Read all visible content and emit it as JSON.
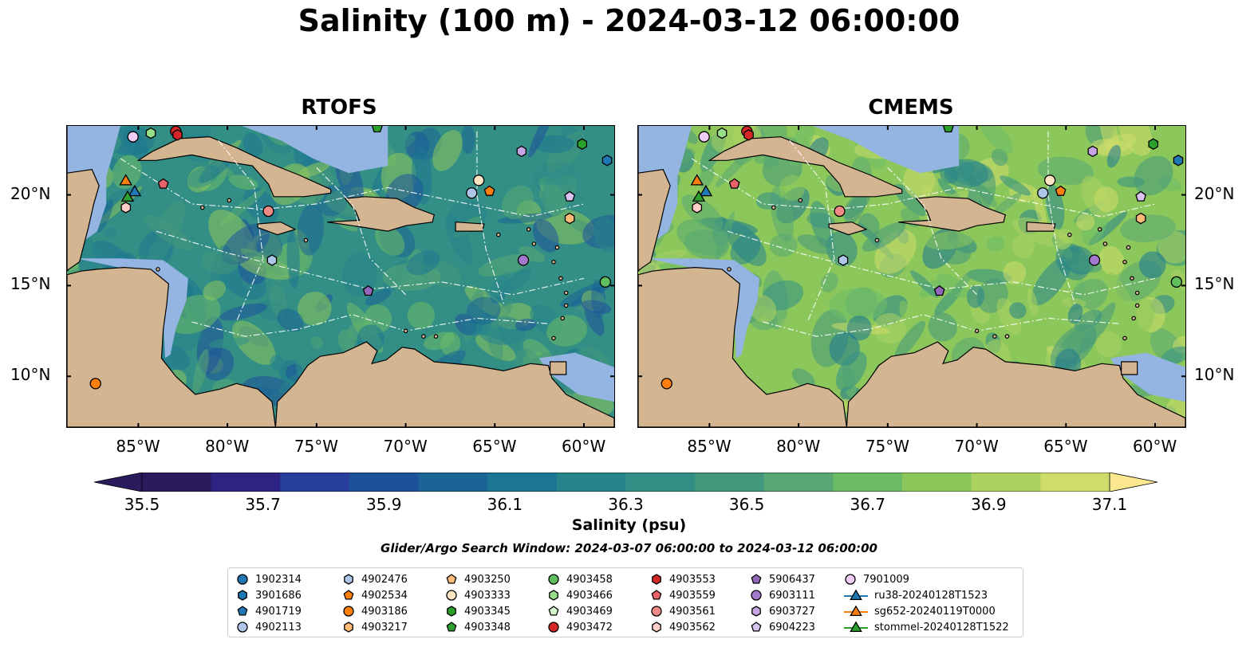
{
  "figure": {
    "title": "Salinity (100 m) - 2024-03-12 06:00:00",
    "search_window": "Glider/Argo Search Window: 2024-03-07 06:00:00 to 2024-03-12 06:00:00"
  },
  "panels": [
    {
      "title": "RTOFS"
    },
    {
      "title": "CMEMS"
    }
  ],
  "axes": {
    "lon_labels": [
      "85°W",
      "80°W",
      "75°W",
      "70°W",
      "65°W",
      "60°W"
    ],
    "lon_values": [
      -85,
      -80,
      -75,
      -70,
      -65,
      -60
    ],
    "lat_labels": [
      "20°N",
      "15°N",
      "10°N"
    ],
    "lat_values": [
      20,
      15,
      10
    ],
    "lon_range": [
      -89,
      -58.3
    ],
    "lat_range": [
      7.2,
      23.8
    ]
  },
  "colorbar": {
    "label": "Salinity (psu)",
    "tick_labels": [
      "35.5",
      "35.7",
      "35.9",
      "36.1",
      "36.3",
      "36.5",
      "36.7",
      "36.9",
      "37.1"
    ],
    "range": [
      35.5,
      37.1
    ],
    "colors": [
      "#2a1a5e",
      "#2c2383",
      "#273e9c",
      "#1d529b",
      "#1a6595",
      "#1b7691",
      "#26848b",
      "#338f85",
      "#43987c",
      "#58a873",
      "#6bbb66",
      "#8cc75b",
      "#acd160",
      "#cddc6a",
      "#fbe88e"
    ],
    "extend": "both"
  },
  "land_color": "#d4b591",
  "shelf_color": "#94b4e2",
  "legend": {
    "columns": [
      [
        {
          "label": "1902314",
          "marker": "circle",
          "color": "#1f77b4"
        },
        {
          "label": "3901686",
          "marker": "hexagon",
          "color": "#1f77b4"
        },
        {
          "label": "4901719",
          "marker": "pentagon",
          "color": "#1f77b4"
        },
        {
          "label": "4902113",
          "marker": "circle",
          "color": "#aec7e8"
        }
      ],
      [
        {
          "label": "4902476",
          "marker": "hexagon",
          "color": "#aec7e8"
        },
        {
          "label": "4902534",
          "marker": "pentagon",
          "color": "#ff7f0e"
        },
        {
          "label": "4903186",
          "marker": "circle",
          "color": "#ff7f0e"
        },
        {
          "label": "4903217",
          "marker": "hexagon",
          "color": "#ffbb78"
        }
      ],
      [
        {
          "label": "4903250",
          "marker": "pentagon",
          "color": "#ffbb78"
        },
        {
          "label": "4903333",
          "marker": "circle",
          "color": "#ffe4c4"
        },
        {
          "label": "4903345",
          "marker": "hexagon",
          "color": "#2ca02c"
        },
        {
          "label": "4903348",
          "marker": "pentagon",
          "color": "#2ca02c"
        }
      ],
      [
        {
          "label": "4903458",
          "marker": "circle",
          "color": "#5fbf5f"
        },
        {
          "label": "4903466",
          "marker": "hexagon",
          "color": "#98df8a"
        },
        {
          "label": "4903469",
          "marker": "pentagon",
          "color": "#d5f5cf"
        },
        {
          "label": "4903472",
          "marker": "circle",
          "color": "#d62728"
        }
      ],
      [
        {
          "label": "4903553",
          "marker": "hexagon",
          "color": "#d62728"
        },
        {
          "label": "4903559",
          "marker": "pentagon",
          "color": "#e8626a"
        },
        {
          "label": "4903561",
          "marker": "circle",
          "color": "#f08a86"
        },
        {
          "label": "4903562",
          "marker": "hexagon",
          "color": "#ffcfc8"
        }
      ],
      [
        {
          "label": "5906437",
          "marker": "pentagon",
          "color": "#9467bd"
        },
        {
          "label": "6903111",
          "marker": "circle",
          "color": "#a279cc"
        },
        {
          "label": "6903727",
          "marker": "hexagon",
          "color": "#c5a6e2"
        },
        {
          "label": "6904223",
          "marker": "pentagon",
          "color": "#d8c3ef"
        }
      ],
      [
        {
          "label": "7901009",
          "marker": "circle",
          "color": "#f0cdf5"
        },
        {
          "label": "ru38-20240128T1523",
          "marker": "triangle-line",
          "color": "#1f77b4"
        },
        {
          "label": "sg652-20240119T0000",
          "marker": "triangle-line",
          "color": "#ff7f0e"
        },
        {
          "label": "stommel-20240128T1522",
          "marker": "triangle-line",
          "color": "#2ca02c"
        }
      ]
    ]
  },
  "floats": [
    {
      "id": "7901009",
      "lon": -85.3,
      "lat": 23.2,
      "marker": "circle",
      "color": "#f0cdf5"
    },
    {
      "id": "4903466",
      "lon": -84.3,
      "lat": 23.4,
      "marker": "hexagon",
      "color": "#98df8a"
    },
    {
      "id": "4903472",
      "lon": -82.9,
      "lat": 23.5,
      "marker": "circle",
      "color": "#d62728"
    },
    {
      "id": "4903553",
      "lon": -82.8,
      "lat": 23.3,
      "marker": "hexagon",
      "color": "#d62728"
    },
    {
      "id": "4903348",
      "lon": -71.6,
      "lat": 23.7,
      "marker": "pentagon",
      "color": "#2ca02c"
    },
    {
      "id": "6903727",
      "lon": -63.5,
      "lat": 22.4,
      "marker": "hexagon",
      "color": "#c5a6e2"
    },
    {
      "id": "4903345",
      "lon": -60.1,
      "lat": 22.8,
      "marker": "hexagon",
      "color": "#2ca02c"
    },
    {
      "id": "3901686",
      "lon": -58.7,
      "lat": 21.9,
      "marker": "hexagon",
      "color": "#1f77b4"
    },
    {
      "id": "4903559",
      "lon": -83.6,
      "lat": 20.6,
      "marker": "pentagon",
      "color": "#e8626a"
    },
    {
      "id": "4903333",
      "lon": -65.9,
      "lat": 20.8,
      "marker": "circle",
      "color": "#ffe4c4"
    },
    {
      "id": "4902113",
      "lon": -66.3,
      "lat": 20.1,
      "marker": "circle",
      "color": "#aec7e8"
    },
    {
      "id": "4902534",
      "lon": -65.3,
      "lat": 20.2,
      "marker": "pentagon",
      "color": "#ff7f0e"
    },
    {
      "id": "6904223",
      "lon": -60.8,
      "lat": 19.9,
      "marker": "pentagon",
      "color": "#d8c3ef"
    },
    {
      "id": "4903562",
      "lon": -85.7,
      "lat": 19.3,
      "marker": "hexagon",
      "color": "#ffcfc8"
    },
    {
      "id": "4903561",
      "lon": -77.7,
      "lat": 19.1,
      "marker": "circle",
      "color": "#f08a86"
    },
    {
      "id": "4903217",
      "lon": -60.8,
      "lat": 18.7,
      "marker": "hexagon",
      "color": "#ffbb78"
    },
    {
      "id": "4902476",
      "lon": -77.5,
      "lat": 16.4,
      "marker": "hexagon",
      "color": "#aec7e8"
    },
    {
      "id": "6903111",
      "lon": -63.4,
      "lat": 16.4,
      "marker": "circle",
      "color": "#a279cc"
    },
    {
      "id": "4903458",
      "lon": -58.8,
      "lat": 15.2,
      "marker": "circle",
      "color": "#5fbf5f"
    },
    {
      "id": "5906437",
      "lon": -72.1,
      "lat": 14.7,
      "marker": "pentagon",
      "color": "#9467bd"
    },
    {
      "id": "4903186",
      "lon": -87.4,
      "lat": 9.6,
      "marker": "circle",
      "color": "#ff7f0e"
    }
  ],
  "gliders": [
    {
      "id": "sg652-20240119T0000",
      "lon": -85.7,
      "lat": 20.8,
      "color": "#ff7f0e"
    },
    {
      "id": "ru38-20240128T1523",
      "lon": -85.2,
      "lat": 20.2,
      "color": "#1f77b4"
    },
    {
      "id": "stommel-20240128T1522",
      "lon": -85.6,
      "lat": 19.9,
      "color": "#2ca02c"
    }
  ]
}
